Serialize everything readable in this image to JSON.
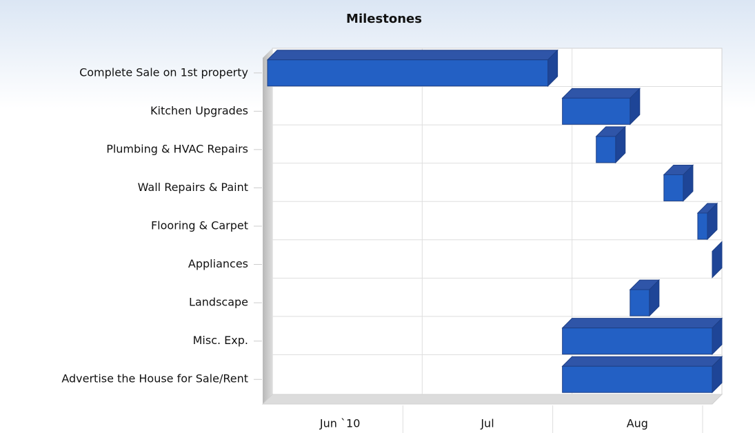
{
  "chart_data": {
    "type": "gantt",
    "title": "Milestones",
    "categories": [
      "Complete Sale on 1st property",
      "Kitchen Upgrades",
      "Plumbing & HVAC Repairs",
      "Wall Repairs & Paint",
      "Flooring & Carpet",
      "Appliances",
      "Landscape",
      "Misc. Exp.",
      "Advertise the House for Sale/Rent"
    ],
    "starts": [
      0,
      61,
      68,
      82,
      89,
      92,
      75,
      61,
      61
    ],
    "ends": [
      58,
      75,
      72,
      86,
      91,
      92,
      79,
      92,
      92
    ],
    "color": "#2360c4",
    "xlim": [
      0,
      92
    ],
    "periods": [
      {
        "label": "Jun `10",
        "start": 0,
        "end": 30
      },
      {
        "label": "Jul",
        "start": 30,
        "end": 61
      },
      {
        "label": "Aug",
        "start": 61,
        "end": 92
      }
    ],
    "grid": true
  }
}
